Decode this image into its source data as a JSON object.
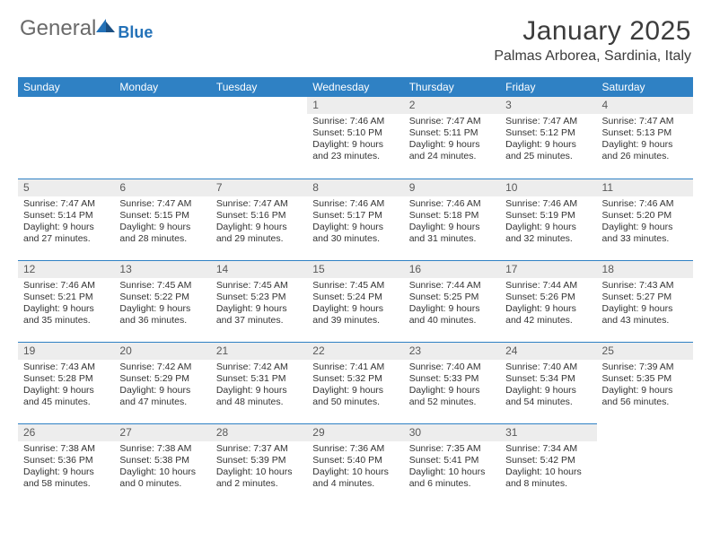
{
  "logo": {
    "main": "General",
    "sub": "Blue"
  },
  "title": "January 2025",
  "location": "Palmas Arborea, Sardinia, Italy",
  "colors": {
    "header_bg": "#2f81c4",
    "header_text": "#ffffff",
    "daynum_bg": "#ededed",
    "daynum_text": "#595959",
    "body_text": "#333333",
    "rule": "#2f81c4",
    "logo_gray": "#6a6a6a",
    "logo_blue": "#2472b8"
  },
  "day_headers": [
    "Sunday",
    "Monday",
    "Tuesday",
    "Wednesday",
    "Thursday",
    "Friday",
    "Saturday"
  ],
  "layout": {
    "start_weekday_index": 3,
    "days_in_month": 31
  },
  "days": {
    "1": {
      "sunrise": "7:46 AM",
      "sunset": "5:10 PM",
      "dl_h": 9,
      "dl_m": 23
    },
    "2": {
      "sunrise": "7:47 AM",
      "sunset": "5:11 PM",
      "dl_h": 9,
      "dl_m": 24
    },
    "3": {
      "sunrise": "7:47 AM",
      "sunset": "5:12 PM",
      "dl_h": 9,
      "dl_m": 25
    },
    "4": {
      "sunrise": "7:47 AM",
      "sunset": "5:13 PM",
      "dl_h": 9,
      "dl_m": 26
    },
    "5": {
      "sunrise": "7:47 AM",
      "sunset": "5:14 PM",
      "dl_h": 9,
      "dl_m": 27
    },
    "6": {
      "sunrise": "7:47 AM",
      "sunset": "5:15 PM",
      "dl_h": 9,
      "dl_m": 28
    },
    "7": {
      "sunrise": "7:47 AM",
      "sunset": "5:16 PM",
      "dl_h": 9,
      "dl_m": 29
    },
    "8": {
      "sunrise": "7:46 AM",
      "sunset": "5:17 PM",
      "dl_h": 9,
      "dl_m": 30
    },
    "9": {
      "sunrise": "7:46 AM",
      "sunset": "5:18 PM",
      "dl_h": 9,
      "dl_m": 31
    },
    "10": {
      "sunrise": "7:46 AM",
      "sunset": "5:19 PM",
      "dl_h": 9,
      "dl_m": 32
    },
    "11": {
      "sunrise": "7:46 AM",
      "sunset": "5:20 PM",
      "dl_h": 9,
      "dl_m": 33
    },
    "12": {
      "sunrise": "7:46 AM",
      "sunset": "5:21 PM",
      "dl_h": 9,
      "dl_m": 35
    },
    "13": {
      "sunrise": "7:45 AM",
      "sunset": "5:22 PM",
      "dl_h": 9,
      "dl_m": 36
    },
    "14": {
      "sunrise": "7:45 AM",
      "sunset": "5:23 PM",
      "dl_h": 9,
      "dl_m": 37
    },
    "15": {
      "sunrise": "7:45 AM",
      "sunset": "5:24 PM",
      "dl_h": 9,
      "dl_m": 39
    },
    "16": {
      "sunrise": "7:44 AM",
      "sunset": "5:25 PM",
      "dl_h": 9,
      "dl_m": 40
    },
    "17": {
      "sunrise": "7:44 AM",
      "sunset": "5:26 PM",
      "dl_h": 9,
      "dl_m": 42
    },
    "18": {
      "sunrise": "7:43 AM",
      "sunset": "5:27 PM",
      "dl_h": 9,
      "dl_m": 43
    },
    "19": {
      "sunrise": "7:43 AM",
      "sunset": "5:28 PM",
      "dl_h": 9,
      "dl_m": 45
    },
    "20": {
      "sunrise": "7:42 AM",
      "sunset": "5:29 PM",
      "dl_h": 9,
      "dl_m": 47
    },
    "21": {
      "sunrise": "7:42 AM",
      "sunset": "5:31 PM",
      "dl_h": 9,
      "dl_m": 48
    },
    "22": {
      "sunrise": "7:41 AM",
      "sunset": "5:32 PM",
      "dl_h": 9,
      "dl_m": 50
    },
    "23": {
      "sunrise": "7:40 AM",
      "sunset": "5:33 PM",
      "dl_h": 9,
      "dl_m": 52
    },
    "24": {
      "sunrise": "7:40 AM",
      "sunset": "5:34 PM",
      "dl_h": 9,
      "dl_m": 54
    },
    "25": {
      "sunrise": "7:39 AM",
      "sunset": "5:35 PM",
      "dl_h": 9,
      "dl_m": 56
    },
    "26": {
      "sunrise": "7:38 AM",
      "sunset": "5:36 PM",
      "dl_h": 9,
      "dl_m": 58
    },
    "27": {
      "sunrise": "7:38 AM",
      "sunset": "5:38 PM",
      "dl_h": 10,
      "dl_m": 0
    },
    "28": {
      "sunrise": "7:37 AM",
      "sunset": "5:39 PM",
      "dl_h": 10,
      "dl_m": 2
    },
    "29": {
      "sunrise": "7:36 AM",
      "sunset": "5:40 PM",
      "dl_h": 10,
      "dl_m": 4
    },
    "30": {
      "sunrise": "7:35 AM",
      "sunset": "5:41 PM",
      "dl_h": 10,
      "dl_m": 6
    },
    "31": {
      "sunrise": "7:34 AM",
      "sunset": "5:42 PM",
      "dl_h": 10,
      "dl_m": 8
    }
  },
  "labels": {
    "sunrise": "Sunrise:",
    "sunset": "Sunset:",
    "daylight": "Daylight:",
    "hours": "hours",
    "and": "and",
    "minutes": "minutes."
  }
}
